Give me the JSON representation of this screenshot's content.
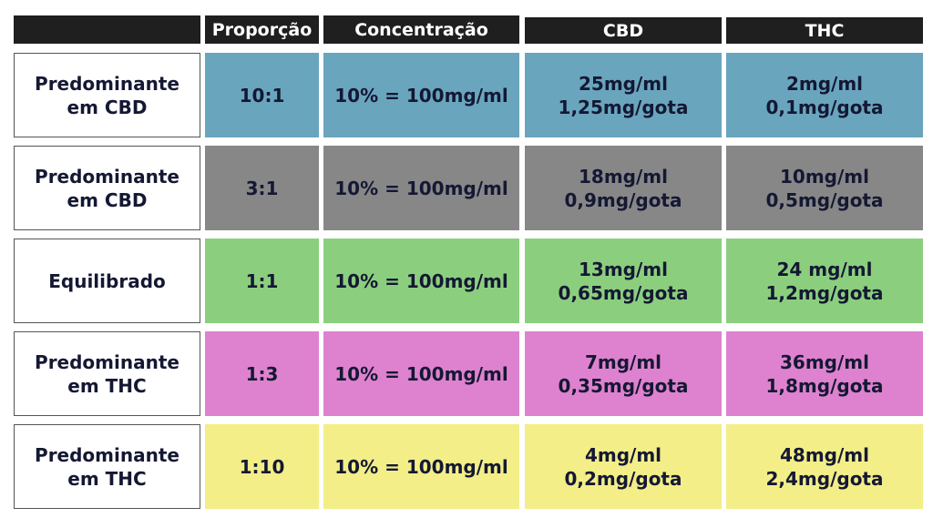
{
  "header": [
    "",
    "Proporção",
    "Concentração",
    "CBD",
    "THC"
  ],
  "rows": [
    {
      "label1": "Predominante",
      "label2": "em CBD",
      "ratio": "10:1",
      "concentration": "10% = 100mg/ml",
      "cbd1": "25mg/ml",
      "cbd2": "1,25mg/gota",
      "thc1": "2mg/ml",
      "thc2": "0,1mg/gota",
      "color": "#6aa5be"
    },
    {
      "label1": "Predominante",
      "label2": "em CBD",
      "ratio": "3:1",
      "concentration": "10% = 100mg/ml",
      "cbd1": "18mg/ml",
      "cbd2": "0,9mg/gota",
      "thc1": "10mg/ml",
      "thc2": "0,5mg/gota",
      "color": "#878787"
    },
    {
      "label1": "Equilibrado",
      "label2": "",
      "ratio": "1:1",
      "concentration": "10% = 100mg/ml",
      "cbd1": "13mg/ml",
      "cbd2": "0,65mg/gota",
      "thc1": "24 mg/ml",
      "thc2": "1,2mg/gota",
      "color": "#8bcf7e"
    },
    {
      "label1": "Predominante",
      "label2": "em THC",
      "ratio": "1:3",
      "concentration": "10% = 100mg/ml",
      "cbd1": "7mg/ml",
      "cbd2": "0,35mg/gota",
      "thc1": "36mg/ml",
      "thc2": "1,8mg/gota",
      "color": "#de82cf"
    },
    {
      "label1": "Predominante",
      "label2": "em THC",
      "ratio": "1:10",
      "concentration": "10% = 100mg/ml",
      "cbd1": "4mg/ml",
      "cbd2": "0,2mg/gota",
      "thc1": "48mg/ml",
      "thc2": "2,4mg/gota",
      "color": "#f3ee87"
    }
  ]
}
